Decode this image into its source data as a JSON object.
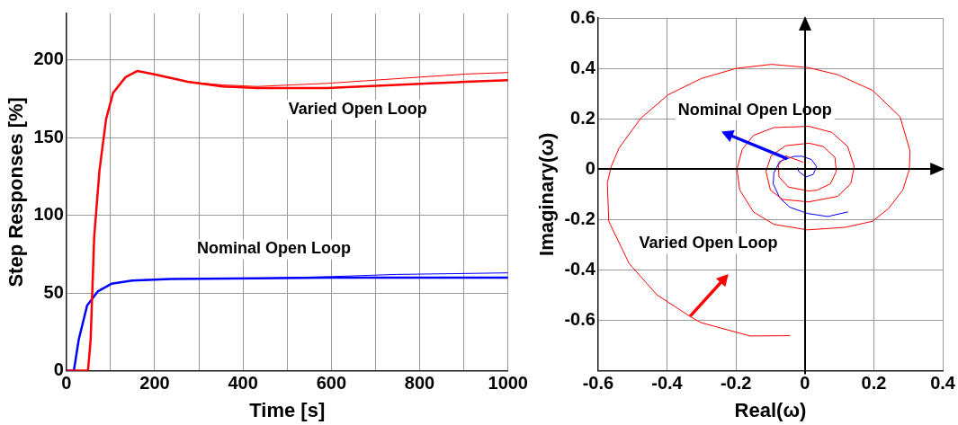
{
  "chart_data": [
    {
      "type": "line",
      "xlabel": "Time [s]",
      "ylabel": "Step Responses [%]",
      "xlim": [
        0,
        1000
      ],
      "ylim": [
        0,
        230
      ],
      "xticks": [
        0,
        {
          "value": 100,
          "label": null
        },
        200,
        {
          "value": 300,
          "label": null
        },
        400,
        {
          "value": 500,
          "label": null
        },
        600,
        {
          "value": 700,
          "label": null
        },
        800,
        {
          "value": 900,
          "label": null
        },
        1000
      ],
      "yticks": [
        0,
        50,
        100,
        150,
        200
      ],
      "grid": true,
      "legend": false,
      "line_style": "solid",
      "marker": "none",
      "series": [
        {
          "color": "#ff0000",
          "x": [
            0,
            49,
            55,
            63,
            75,
            90,
            106,
            134,
            161,
            197,
            275,
            354,
            432,
            511,
            590,
            668,
            747,
            825,
            904,
            1000
          ],
          "values": [
            0,
            0,
            20,
            86,
            129,
            162,
            179,
            189,
            193,
            191,
            186,
            183,
            182,
            182,
            182,
            183,
            184,
            185,
            186,
            187
          ]
        },
        {
          "color": "#ff0000",
          "x": [
            0,
            49,
            55,
            63,
            75,
            90,
            106,
            134,
            161,
            197,
            275,
            354,
            432,
            590,
            747,
            904,
            1000
          ],
          "values": [
            0,
            0,
            20,
            86,
            129,
            162,
            179,
            189,
            193,
            191,
            186,
            184,
            183,
            185,
            188,
            191,
            192
          ]
        },
        {
          "color": "#0000ff",
          "x": [
            0,
            17,
            28,
            47,
            71,
            102,
            149,
            236,
            432,
            590,
            747,
            1000
          ],
          "values": [
            0,
            0,
            20,
            42,
            51,
            56,
            58,
            59,
            59.5,
            60,
            60,
            60
          ]
        },
        {
          "color": "#0000ff",
          "x": [
            0,
            17,
            28,
            47,
            71,
            102,
            149,
            236,
            432,
            590,
            747,
            1000
          ],
          "values": [
            0,
            0,
            20,
            42,
            51,
            56,
            58,
            59,
            59.5,
            60.5,
            62,
            63
          ]
        }
      ],
      "annotations": [
        "Varied Open Loop",
        "Nominal Open Loop"
      ]
    },
    {
      "type": "line",
      "xlabel": "Real(ω)",
      "ylabel": "Imaginary(ω)",
      "xlim": [
        -0.6,
        0.4
      ],
      "ylim": [
        -0.8,
        0.6
      ],
      "xticks": [
        -0.6,
        -0.4,
        -0.2,
        0,
        0.2,
        0.4
      ],
      "yticks": [
        -0.6,
        -0.4,
        -0.2,
        0,
        0.2,
        0.4,
        0.6
      ],
      "grid": true,
      "legend": false,
      "line_style": "solid",
      "marker": "none",
      "series": [
        {
          "color": "#ff0000",
          "x": [
            -0.044,
            -0.159,
            -0.302,
            -0.334,
            -0.43,
            -0.51,
            -0.569,
            -0.573,
            -0.562,
            -0.539,
            -0.476,
            -0.397,
            -0.3,
            -0.199,
            -0.097,
            0.01,
            0.095,
            0.196,
            0.276,
            0.305,
            0.303,
            0.284,
            0.242,
            0.196,
            0.116,
            0.007,
            -0.09,
            -0.149,
            -0.189,
            -0.197,
            -0.182,
            -0.149,
            -0.09,
            0.012,
            0.078,
            0.124,
            0.143,
            0.133,
            0.095,
            0.011,
            -0.065,
            -0.1,
            -0.113,
            -0.098,
            -0.056,
            0.012,
            0.053,
            0.087,
            0.091,
            0.074,
            0.036,
            0.012,
            -0.048,
            -0.075,
            -0.077,
            -0.056,
            -0.006
          ],
          "values": [
            -0.661,
            -0.662,
            -0.609,
            -0.584,
            -0.498,
            -0.374,
            -0.207,
            -0.054,
            0.01,
            0.084,
            0.202,
            0.295,
            0.36,
            0.4,
            0.416,
            0.403,
            0.375,
            0.313,
            0.208,
            0.072,
            0,
            -0.083,
            -0.157,
            -0.207,
            -0.231,
            -0.241,
            -0.219,
            -0.17,
            -0.083,
            0,
            0.078,
            0.134,
            0.165,
            0.17,
            0.146,
            0.09,
            0.01,
            -0.058,
            -0.108,
            -0.13,
            -0.12,
            -0.083,
            -0.009,
            0.053,
            0.093,
            0.103,
            0.09,
            0.047,
            -0.009,
            -0.058,
            -0.083,
            -0.087,
            -0.071,
            -0.031,
            0.016,
            0.053,
            0.028
          ]
        },
        {
          "color": "#0000ff",
          "x": [
            -0.021,
            -0.018,
            0.003,
            0.024,
            0.034,
            0.019,
            -0.008,
            -0.031,
            -0.073,
            -0.09,
            -0.092,
            -0.073,
            -0.044,
            0.008,
            0.066,
            0.124
          ],
          "values": [
            0.006,
            -0.009,
            -0.031,
            -0.021,
            0.01,
            0.038,
            0.051,
            0.051,
            0.031,
            -0.015,
            -0.058,
            -0.114,
            -0.151,
            -0.176,
            -0.188,
            -0.17
          ]
        }
      ],
      "annotations": [
        "Nominal Open Loop",
        "Varied Open Loop"
      ]
    }
  ]
}
